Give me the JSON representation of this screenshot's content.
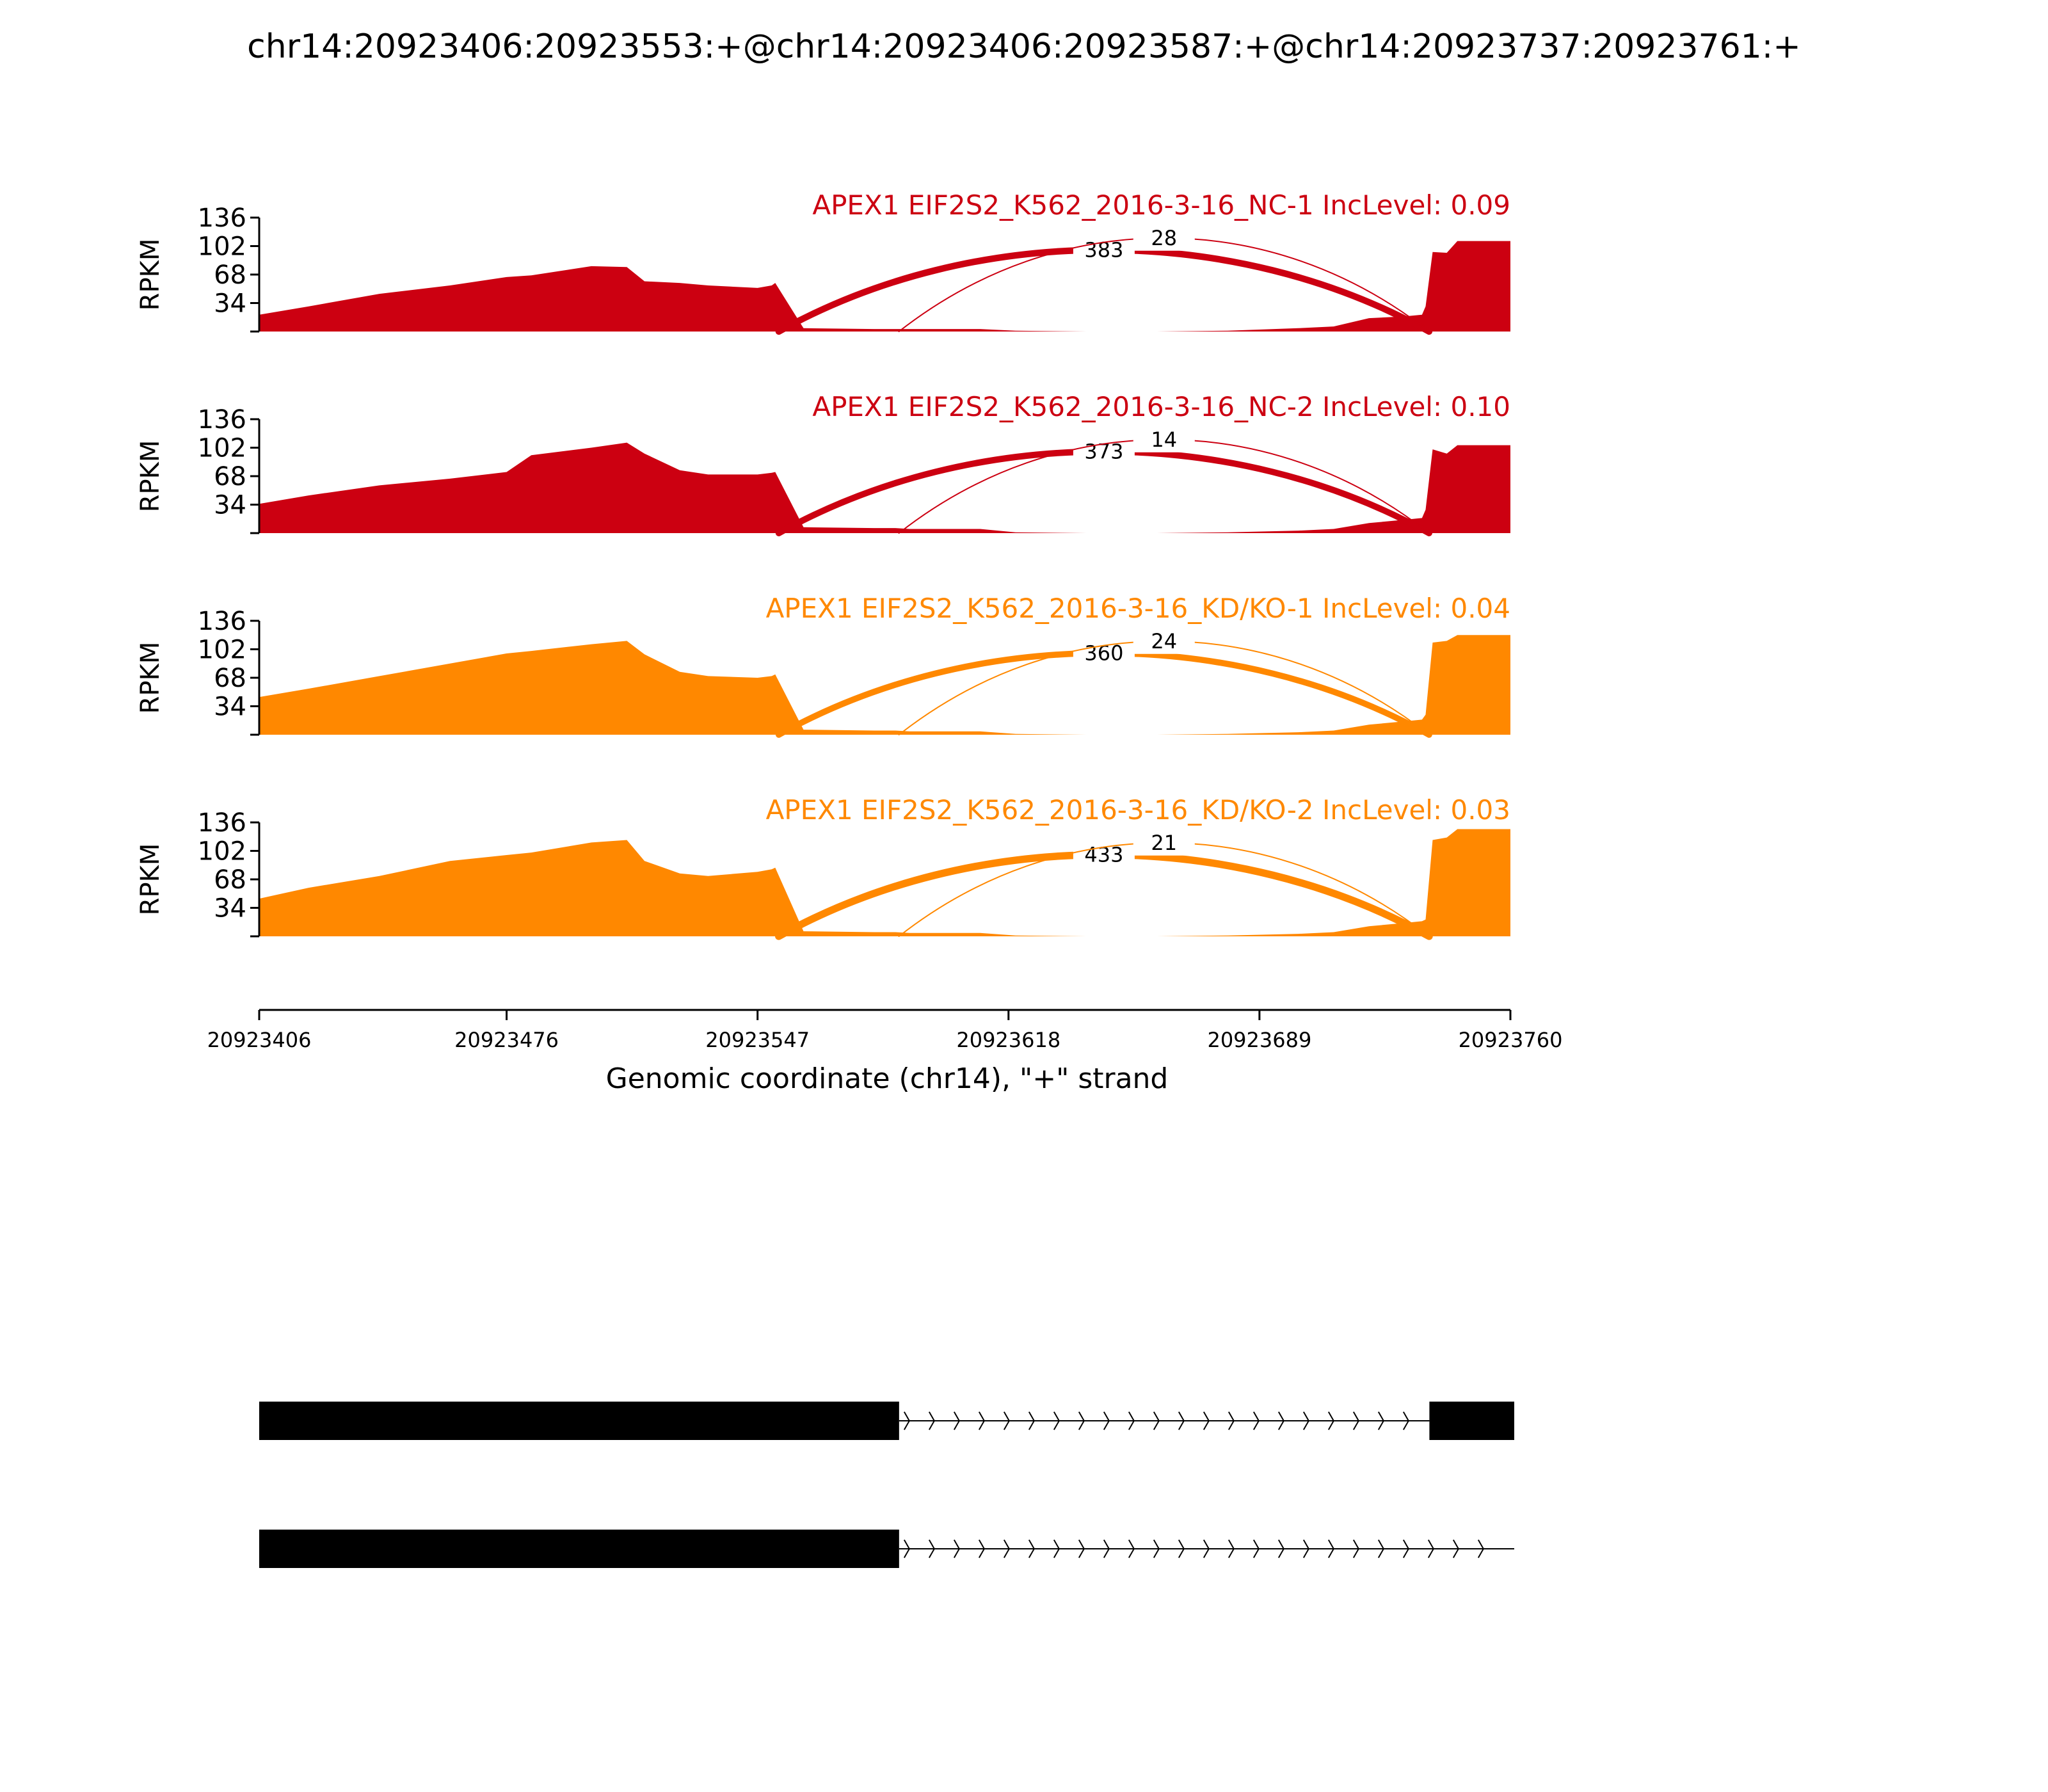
{
  "title": "chr14:20923406:20923553:+@chr14:20923406:20923587:+@chr14:20923737:20923761:+",
  "colors": {
    "NC": "#cc0011",
    "KD": "#ff8800",
    "axis": "#000000"
  },
  "chart_data": {
    "type": "area",
    "subtype": "sashimi",
    "xlabel": "Genomic coordinate (chr14), \"+\" strand",
    "ylabel": "RPKM",
    "xlim": [
      20923406,
      20923760
    ],
    "xticks": [
      "20923406",
      "20923476",
      "20923547",
      "20923618",
      "20923689",
      "20923760"
    ],
    "ylim": [
      0,
      136
    ],
    "yticks": [
      "136",
      "102",
      "68",
      "34"
    ],
    "coverage_x": [
      20923406,
      20923420,
      20923440,
      20923460,
      20923476,
      20923483,
      20923500,
      20923510,
      20923515,
      20923525,
      20923533,
      20923547,
      20923551,
      20923552,
      20923560,
      20923580,
      20923584,
      20923586,
      20923590,
      20923610,
      20923620,
      20923640,
      20923660,
      20923680,
      20923700,
      20923710,
      20923720,
      20923730,
      20923735,
      20923736,
      20923738,
      20923742,
      20923745,
      20923760
    ],
    "series": [
      {
        "name": "APEX1 EIF2S2_K562_2016-3-16_NC-1",
        "group": "NC",
        "inc_level": "0.09",
        "label": "APEX1 EIF2S2_K562_2016-3-16_NC-1 IncLevel: 0.09",
        "coverage": [
          20,
          30,
          45,
          55,
          65,
          67,
          78,
          77,
          60,
          58,
          55,
          52,
          55,
          58,
          4,
          3,
          3,
          3,
          3,
          3,
          1,
          0,
          0,
          1,
          4,
          6,
          16,
          18,
          20,
          30,
          95,
          94,
          108,
          108
        ],
        "junctions": [
          {
            "count": "383",
            "reads": 383
          },
          {
            "count": "28",
            "reads": 28
          }
        ]
      },
      {
        "name": "APEX1 EIF2S2_K562_2016-3-16_NC-2",
        "group": "NC",
        "inc_level": "0.10",
        "label": "APEX1 EIF2S2_K562_2016-3-16_NC-2 IncLevel: 0.10",
        "coverage": [
          35,
          45,
          57,
          65,
          73,
          93,
          102,
          108,
          95,
          75,
          70,
          70,
          72,
          73,
          7,
          6,
          6,
          6,
          5,
          5,
          1,
          0,
          0,
          1,
          3,
          5,
          12,
          16,
          18,
          28,
          100,
          95,
          105,
          105
        ],
        "junctions": [
          {
            "count": "373",
            "reads": 373
          },
          {
            "count": "14",
            "reads": 14
          }
        ]
      },
      {
        "name": "APEX1 EIF2S2_K562_2016-3-16_KD/KO-1",
        "group": "KD",
        "inc_level": "0.04",
        "label": "APEX1 EIF2S2_K562_2016-3-16_KD/KO-1 IncLevel: 0.04",
        "coverage": [
          45,
          55,
          70,
          85,
          97,
          100,
          108,
          112,
          96,
          75,
          70,
          68,
          70,
          72,
          6,
          5,
          5,
          5,
          4,
          4,
          1,
          0,
          0,
          1,
          3,
          5,
          12,
          16,
          18,
          24,
          110,
          112,
          119,
          119
        ],
        "junctions": [
          {
            "count": "360",
            "reads": 360
          },
          {
            "count": "24",
            "reads": 24
          }
        ]
      },
      {
        "name": "APEX1 EIF2S2_K562_2016-3-16_KD/KO-2",
        "group": "KD",
        "inc_level": "0.03",
        "label": "APEX1 EIF2S2_K562_2016-3-16_KD/KO-2 IncLevel: 0.03",
        "coverage": [
          45,
          58,
          72,
          90,
          97,
          100,
          112,
          115,
          90,
          75,
          72,
          77,
          80,
          82,
          6,
          5,
          5,
          5,
          4,
          4,
          1,
          0,
          0,
          1,
          3,
          5,
          12,
          16,
          18,
          20,
          115,
          118,
          128,
          128
        ],
        "junctions": [
          {
            "count": "433",
            "reads": 433
          },
          {
            "count": "21",
            "reads": 21
          }
        ]
      }
    ],
    "junctions": [
      {
        "from": 20923553,
        "to": 20923737
      },
      {
        "from": 20923587,
        "to": 20923737
      }
    ],
    "transcripts": [
      {
        "exons": [
          [
            20923406,
            20923587
          ],
          [
            20923737,
            20923761
          ]
        ]
      },
      {
        "exons": [
          [
            20923406,
            20923587
          ]
        ],
        "line_to": 20923761
      }
    ]
  }
}
